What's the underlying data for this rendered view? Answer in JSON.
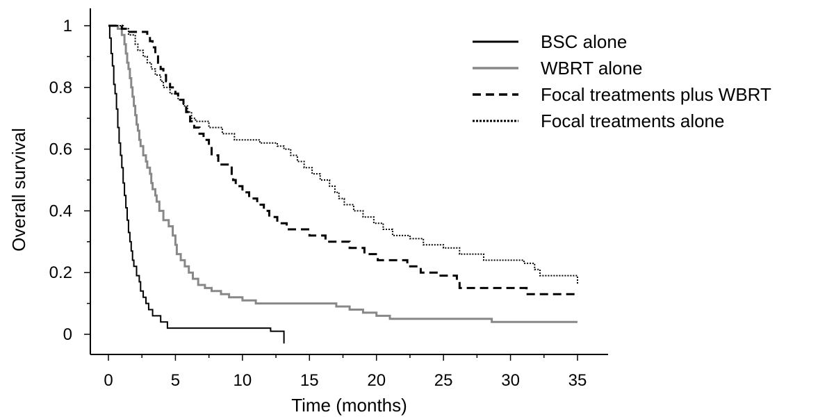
{
  "chart_data": {
    "type": "line",
    "step": true,
    "title": "",
    "xlabel": "Time (months)",
    "ylabel": "Overall survival",
    "xlim": [
      0,
      35
    ],
    "ylim": [
      0,
      1
    ],
    "xticks": [
      0,
      5,
      10,
      15,
      20,
      25,
      30,
      35
    ],
    "xtick_labels": [
      "0",
      "5",
      "10",
      "15",
      "20",
      "25",
      "30",
      "35"
    ],
    "yticks": [
      0,
      0.2,
      0.4,
      0.6,
      0.8,
      1
    ],
    "ytick_labels": [
      "0",
      "0.2",
      "0.4",
      "0.6",
      "0.8",
      "1"
    ],
    "grid": false,
    "legend_position": "top-right",
    "series": [
      {
        "name": "BSC alone",
        "color": "#000000",
        "style": "solid",
        "points": [
          [
            0,
            1
          ],
          [
            0.1,
            0.96
          ],
          [
            0.2,
            0.91
          ],
          [
            0.3,
            0.87
          ],
          [
            0.4,
            0.81
          ],
          [
            0.5,
            0.78
          ],
          [
            0.6,
            0.73
          ],
          [
            0.7,
            0.67
          ],
          [
            0.8,
            0.62
          ],
          [
            0.9,
            0.58
          ],
          [
            1.0,
            0.54
          ],
          [
            1.1,
            0.49
          ],
          [
            1.2,
            0.45
          ],
          [
            1.3,
            0.41
          ],
          [
            1.4,
            0.37
          ],
          [
            1.5,
            0.33
          ],
          [
            1.6,
            0.3
          ],
          [
            1.7,
            0.27
          ],
          [
            1.8,
            0.24
          ],
          [
            1.9,
            0.22
          ],
          [
            2.1,
            0.19
          ],
          [
            2.3,
            0.17
          ],
          [
            2.4,
            0.14
          ],
          [
            2.6,
            0.12
          ],
          [
            2.8,
            0.1
          ],
          [
            3.0,
            0.08
          ],
          [
            3.3,
            0.06
          ],
          [
            3.9,
            0.04
          ],
          [
            4.4,
            0.02
          ],
          [
            12.1,
            0.01
          ],
          [
            13.1,
            -0.03
          ]
        ]
      },
      {
        "name": "WBRT alone",
        "color": "#888888",
        "style": "solid",
        "points": [
          [
            0,
            1
          ],
          [
            0.7,
            0.99
          ],
          [
            1.0,
            0.97
          ],
          [
            1.2,
            0.94
          ],
          [
            1.3,
            0.91
          ],
          [
            1.4,
            0.88
          ],
          [
            1.5,
            0.86
          ],
          [
            1.6,
            0.83
          ],
          [
            1.7,
            0.8
          ],
          [
            1.8,
            0.77
          ],
          [
            1.9,
            0.74
          ],
          [
            2.0,
            0.71
          ],
          [
            2.1,
            0.68
          ],
          [
            2.2,
            0.66
          ],
          [
            2.3,
            0.63
          ],
          [
            2.4,
            0.61
          ],
          [
            2.6,
            0.58
          ],
          [
            2.8,
            0.56
          ],
          [
            2.9,
            0.54
          ],
          [
            3.1,
            0.52
          ],
          [
            3.2,
            0.49
          ],
          [
            3.3,
            0.47
          ],
          [
            3.5,
            0.45
          ],
          [
            3.6,
            0.43
          ],
          [
            3.8,
            0.4
          ],
          [
            4.1,
            0.37
          ],
          [
            4.5,
            0.35
          ],
          [
            4.8,
            0.32
          ],
          [
            5.0,
            0.29
          ],
          [
            5.1,
            0.26
          ],
          [
            5.4,
            0.24
          ],
          [
            5.7,
            0.22
          ],
          [
            6.0,
            0.2
          ],
          [
            6.3,
            0.18
          ],
          [
            6.7,
            0.16
          ],
          [
            7.2,
            0.15
          ],
          [
            7.7,
            0.14
          ],
          [
            8.4,
            0.13
          ],
          [
            9.0,
            0.12
          ],
          [
            10.0,
            0.11
          ],
          [
            11.0,
            0.1
          ],
          [
            17.0,
            0.09
          ],
          [
            18.0,
            0.08
          ],
          [
            19.0,
            0.07
          ],
          [
            20.0,
            0.06
          ],
          [
            21.0,
            0.05
          ],
          [
            28.6,
            0.04
          ],
          [
            35,
            0.04
          ]
        ]
      },
      {
        "name": "Focal treatments plus WBRT",
        "color": "#000000",
        "style": "dashed",
        "points": [
          [
            0,
            1
          ],
          [
            1.0,
            0.99
          ],
          [
            1.5,
            0.98
          ],
          [
            2.9,
            0.97
          ],
          [
            3.1,
            0.95
          ],
          [
            3.3,
            0.93
          ],
          [
            3.5,
            0.91
          ],
          [
            3.7,
            0.88
          ],
          [
            3.9,
            0.86
          ],
          [
            4.1,
            0.84
          ],
          [
            4.3,
            0.82
          ],
          [
            4.6,
            0.8
          ],
          [
            5.0,
            0.78
          ],
          [
            5.2,
            0.76
          ],
          [
            5.6,
            0.74
          ],
          [
            5.8,
            0.72
          ],
          [
            6.1,
            0.69
          ],
          [
            6.4,
            0.67
          ],
          [
            6.8,
            0.65
          ],
          [
            7.1,
            0.63
          ],
          [
            7.5,
            0.61
          ],
          [
            7.7,
            0.58
          ],
          [
            8.2,
            0.55
          ],
          [
            9.2,
            0.52
          ],
          [
            9.3,
            0.5
          ],
          [
            9.5,
            0.48
          ],
          [
            10.0,
            0.46
          ],
          [
            10.5,
            0.44
          ],
          [
            11.1,
            0.42
          ],
          [
            11.6,
            0.4
          ],
          [
            12.0,
            0.38
          ],
          [
            12.6,
            0.36
          ],
          [
            13.3,
            0.34
          ],
          [
            15.0,
            0.32
          ],
          [
            16.2,
            0.3
          ],
          [
            18.0,
            0.28
          ],
          [
            19.1,
            0.26
          ],
          [
            20.1,
            0.24
          ],
          [
            22.3,
            0.22
          ],
          [
            23.3,
            0.2
          ],
          [
            24.7,
            0.19
          ],
          [
            26.0,
            0.17
          ],
          [
            26.2,
            0.15
          ],
          [
            31.2,
            0.13
          ],
          [
            35,
            0.13
          ]
        ]
      },
      {
        "name": "Focal treatments alone",
        "color": "#000000",
        "style": "dotted",
        "points": [
          [
            0,
            1
          ],
          [
            1.1,
            0.99
          ],
          [
            1.5,
            0.97
          ],
          [
            2.0,
            0.94
          ],
          [
            2.2,
            0.92
          ],
          [
            2.6,
            0.9
          ],
          [
            2.9,
            0.88
          ],
          [
            3.2,
            0.86
          ],
          [
            3.5,
            0.84
          ],
          [
            3.9,
            0.82
          ],
          [
            4.1,
            0.8
          ],
          [
            4.6,
            0.78
          ],
          [
            5.2,
            0.76
          ],
          [
            5.6,
            0.74
          ],
          [
            5.9,
            0.72
          ],
          [
            6.2,
            0.7
          ],
          [
            6.5,
            0.69
          ],
          [
            7.5,
            0.67
          ],
          [
            8.5,
            0.65
          ],
          [
            9.4,
            0.63
          ],
          [
            11.3,
            0.62
          ],
          [
            12.6,
            0.61
          ],
          [
            13.1,
            0.6
          ],
          [
            13.6,
            0.58
          ],
          [
            14.1,
            0.56
          ],
          [
            14.6,
            0.54
          ],
          [
            15.2,
            0.52
          ],
          [
            15.8,
            0.5
          ],
          [
            16.5,
            0.48
          ],
          [
            16.9,
            0.46
          ],
          [
            17.2,
            0.44
          ],
          [
            17.6,
            0.42
          ],
          [
            18.3,
            0.4
          ],
          [
            19.0,
            0.38
          ],
          [
            19.8,
            0.36
          ],
          [
            20.5,
            0.34
          ],
          [
            21.2,
            0.32
          ],
          [
            22.5,
            0.31
          ],
          [
            23.5,
            0.29
          ],
          [
            25.0,
            0.28
          ],
          [
            26.2,
            0.26
          ],
          [
            28.0,
            0.24
          ],
          [
            31.0,
            0.23
          ],
          [
            31.8,
            0.21
          ],
          [
            32.2,
            0.19
          ],
          [
            35,
            0.18
          ],
          [
            35,
            0.16
          ]
        ]
      }
    ]
  }
}
